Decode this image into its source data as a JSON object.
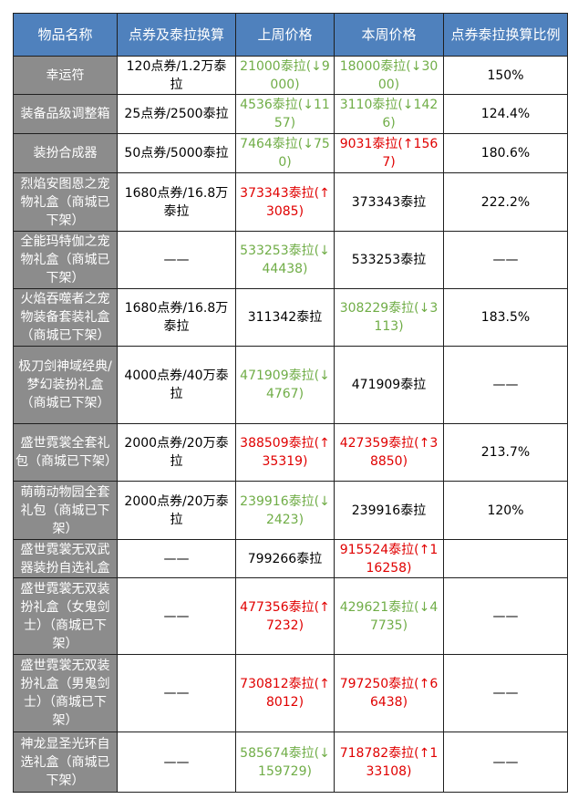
{
  "colors": {
    "header_bg": "#4f81bd",
    "name_cell_bg": "#8c8c8c",
    "decrease": "#70ad47",
    "increase": "#e00000"
  },
  "headers": [
    "物品名称",
    "点券及泰拉换算",
    "上周价格",
    "本周价格",
    "点券泰拉换算比例"
  ],
  "rows": [
    {
      "name": "幸运符",
      "conversion": "120点券/1.2万泰拉",
      "last_week": "21000泰拉(↓9000)",
      "last_week_trend": "down",
      "this_week": "18000泰拉(↓3000)",
      "this_week_trend": "down",
      "ratio": "150%"
    },
    {
      "name": "装备品级调整箱",
      "conversion": "25点券/2500泰拉",
      "last_week": "4536泰拉(↓1157)",
      "last_week_trend": "down",
      "this_week": "3110泰拉(↓1426)",
      "this_week_trend": "down",
      "ratio": "124.4%"
    },
    {
      "name": "装扮合成器",
      "conversion": "50点券/5000泰拉",
      "last_week": "7464泰拉(↓750)",
      "last_week_trend": "down",
      "this_week": "9031泰拉(↑1567)",
      "this_week_trend": "up",
      "ratio": "180.6%"
    },
    {
      "name": "烈焰安图恩之宠物礼盒（商城已下架）",
      "conversion": "1680点券/16.8万泰拉",
      "last_week": "373343泰拉(↑3085)",
      "last_week_trend": "up",
      "this_week": "373343泰拉",
      "this_week_trend": "flat",
      "ratio": "222.2%"
    },
    {
      "name": "全能玛特伽之宠物礼盒（商城已下架）",
      "conversion": "——",
      "last_week": "533253泰拉(↓44438)",
      "last_week_trend": "down",
      "this_week": "533253泰拉",
      "this_week_trend": "flat",
      "ratio": "——"
    },
    {
      "name": "火焰吞噬者之宠物装备套装礼盒（商城已下架）",
      "conversion": "1680点券/16.8万泰拉",
      "last_week": "311342泰拉",
      "last_week_trend": "flat",
      "this_week": "308229泰拉(↓3113)",
      "this_week_trend": "down",
      "ratio": "183.5%"
    },
    {
      "name": "极刀剑神域经典/梦幻装扮礼盒（商城已下架）",
      "conversion": "4000点券/40万泰拉",
      "last_week": "471909泰拉(↓4767)",
      "last_week_trend": "down",
      "this_week": "471909泰拉",
      "this_week_trend": "flat",
      "ratio": "——"
    },
    {
      "name": "盛世霓裳全套礼包（商城已下架）",
      "conversion": "2000点券/20万泰拉",
      "last_week": "388509泰拉(↑35319)",
      "last_week_trend": "up",
      "this_week": "427359泰拉(↑38850)",
      "this_week_trend": "up",
      "ratio": "213.7%"
    },
    {
      "name": "萌萌动物园全套礼包（商城已下架）",
      "conversion": "2000点券/20万泰拉",
      "last_week": "239916泰拉(↓2423)",
      "last_week_trend": "down",
      "this_week": "239916泰拉",
      "this_week_trend": "flat",
      "ratio": "120%"
    },
    {
      "name": "盛世霓裳无双武器装扮自选礼盒",
      "conversion": "——",
      "last_week": "799266泰拉",
      "last_week_trend": "flat",
      "this_week": "915524泰拉(↑116258)",
      "this_week_trend": "up",
      "ratio": ""
    },
    {
      "name": "盛世霓裳无双装扮礼盒（女鬼剑士）（商城已下架）",
      "conversion": "——",
      "last_week": "477356泰拉(↑7232)",
      "last_week_trend": "up",
      "this_week": "429621泰拉(↓47735)",
      "this_week_trend": "down",
      "ratio": "——"
    },
    {
      "name": "盛世霓裳无双装扮礼盒（男鬼剑士）（商城已下架）",
      "conversion": "——",
      "last_week": "730812泰拉(↑8012)",
      "last_week_trend": "up",
      "this_week": "797250泰拉(↑66438)",
      "this_week_trend": "up",
      "ratio": "——"
    },
    {
      "name": "神龙显圣光环自选礼盒（商城已下架）",
      "conversion": "——",
      "last_week": "585674泰拉(↓159729)",
      "last_week_trend": "down",
      "this_week": "718782泰拉(↑133108)",
      "this_week_trend": "up",
      "ratio": "——"
    }
  ]
}
